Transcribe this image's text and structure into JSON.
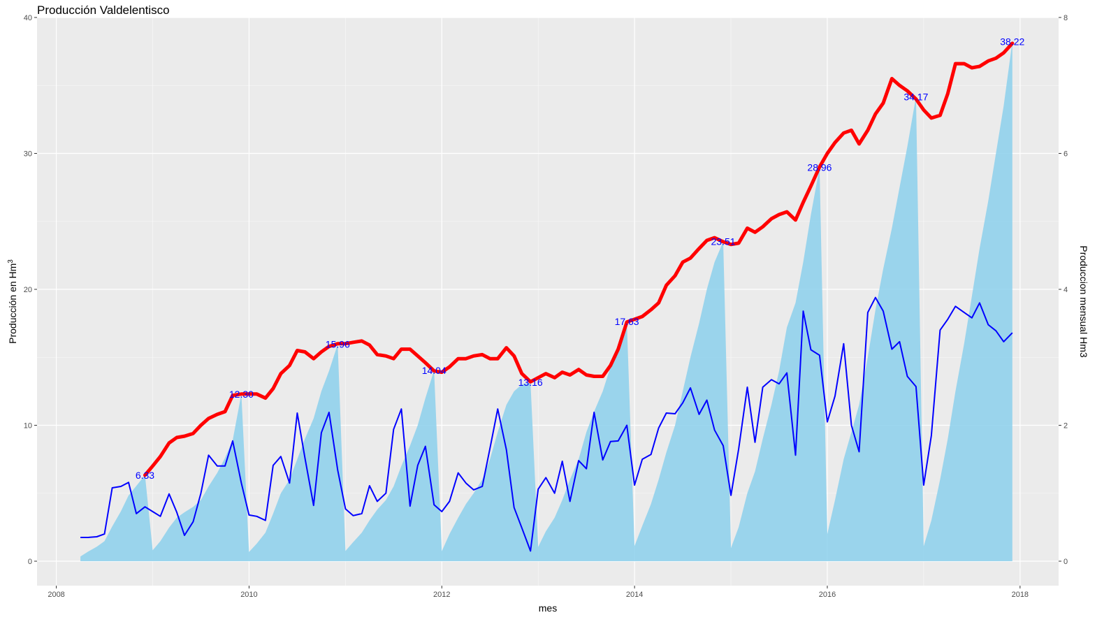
{
  "chart_data": {
    "type": "area",
    "title": "Producción Valdelentisco",
    "xlabel": "mes",
    "ylabel": "Producción en Hm3",
    "ylabel_right": "Produccion mensual Hm3",
    "xlim": [
      2007.8,
      2018.4
    ],
    "ylim": [
      -1.8,
      40
    ],
    "ylim_right": [
      -0.36,
      8
    ],
    "x_ticks": [
      2008,
      2010,
      2012,
      2014,
      2016,
      2018
    ],
    "x_tick_labels": [
      "2008",
      "2010",
      "2012",
      "2014",
      "2016",
      "2018"
    ],
    "y_ticks": [
      0,
      10,
      20,
      30,
      40
    ],
    "y_tick_labels": [
      "0",
      "10",
      "20",
      "30",
      "40"
    ],
    "y_ticks_right": [
      0,
      2,
      4,
      6,
      8
    ],
    "y_tick_labels_right": [
      "0",
      "2",
      "4",
      "6",
      "8"
    ],
    "grid": true,
    "background": "#ebebeb",
    "colors": {
      "cumulative_area": "#87ceeb",
      "monthly_line": "#0000ff",
      "rolling_line": "#ff0000",
      "labels": "#0000ff"
    },
    "series": [
      {
        "type": "area",
        "axis": "left",
        "x": [
          2008.25,
          2008.33,
          2008.42,
          2008.5,
          2008.58,
          2008.67,
          2008.75,
          2008.83,
          2008.92,
          2009.0,
          2009.08,
          2009.17,
          2009.25,
          2009.33,
          2009.42,
          2009.5,
          2009.58,
          2009.67,
          2009.75,
          2009.83,
          2009.92,
          2010.0,
          2010.08,
          2010.17,
          2010.25,
          2010.33,
          2010.42,
          2010.5,
          2010.58,
          2010.67,
          2010.75,
          2010.83,
          2010.92,
          2011.0,
          2011.08,
          2011.17,
          2011.25,
          2011.33,
          2011.42,
          2011.5,
          2011.58,
          2011.67,
          2011.75,
          2011.83,
          2011.92,
          2012.0,
          2012.08,
          2012.17,
          2012.25,
          2012.33,
          2012.42,
          2012.5,
          2012.58,
          2012.67,
          2012.75,
          2012.83,
          2012.92,
          2013.0,
          2013.08,
          2013.17,
          2013.25,
          2013.33,
          2013.42,
          2013.5,
          2013.58,
          2013.67,
          2013.75,
          2013.83,
          2013.92,
          2014.0,
          2014.08,
          2014.17,
          2014.25,
          2014.33,
          2014.42,
          2014.5,
          2014.58,
          2014.67,
          2014.75,
          2014.83,
          2014.92,
          2015.0,
          2015.08,
          2015.17,
          2015.25,
          2015.33,
          2015.42,
          2015.5,
          2015.58,
          2015.67,
          2015.75,
          2015.83,
          2015.92,
          2016.0,
          2016.08,
          2016.17,
          2016.25,
          2016.33,
          2016.42,
          2016.5,
          2016.58,
          2016.67,
          2016.75,
          2016.83,
          2016.92,
          2017.0,
          2017.08,
          2017.17,
          2017.25,
          2017.33,
          2017.42,
          2017.5,
          2017.58,
          2017.67,
          2017.75,
          2017.83,
          2017.92
        ],
        "y": [
          0.35,
          0.71,
          1.07,
          1.47,
          2.56,
          3.67,
          4.84,
          5.54,
          6.33,
          0.8,
          1.47,
          2.47,
          3.2,
          3.6,
          4.0,
          4.5,
          5.5,
          6.5,
          7.6,
          8.9,
          12.3,
          0.68,
          1.3,
          2.1,
          3.5,
          5.0,
          6.0,
          7.5,
          9.0,
          10.5,
          12.5,
          14.0,
          15.96,
          0.75,
          1.4,
          2.1,
          3.0,
          3.8,
          4.5,
          5.5,
          7.0,
          8.5,
          10.0,
          12.0,
          14.04,
          0.74,
          2.0,
          3.2,
          4.2,
          5.0,
          6.0,
          7.5,
          9.5,
          11.5,
          12.5,
          13.0,
          13.16,
          1.05,
          2.2,
          3.2,
          4.5,
          6.0,
          7.5,
          9.5,
          11.0,
          12.5,
          14.3,
          16.0,
          17.63,
          1.12,
          2.6,
          4.2,
          6.0,
          8.0,
          10.0,
          12.5,
          15.0,
          17.5,
          20.0,
          22.0,
          23.51,
          0.97,
          2.5,
          5.0,
          6.6,
          9.0,
          11.5,
          14.0,
          17.2,
          19.0,
          22.0,
          25.5,
          28.96,
          2.0,
          4.5,
          7.5,
          9.5,
          11.5,
          15.0,
          18.5,
          21.5,
          24.5,
          27.5,
          30.5,
          34.17,
          1.1,
          3.0,
          6.0,
          9.0,
          12.5,
          16.0,
          19.5,
          23.0,
          26.5,
          30.0,
          33.5,
          38.22
        ]
      },
      {
        "type": "line",
        "axis": "right",
        "x": [
          2008.25,
          2008.33,
          2008.42,
          2008.5,
          2008.58,
          2008.67,
          2008.75,
          2008.83,
          2008.92,
          2009.0,
          2009.08,
          2009.17,
          2009.25,
          2009.33,
          2009.42,
          2009.5,
          2009.58,
          2009.67,
          2009.75,
          2009.83,
          2009.92,
          2010.0,
          2010.08,
          2010.17,
          2010.25,
          2010.33,
          2010.42,
          2010.5,
          2010.58,
          2010.67,
          2010.75,
          2010.83,
          2010.92,
          2011.0,
          2011.08,
          2011.17,
          2011.25,
          2011.33,
          2011.42,
          2011.5,
          2011.58,
          2011.67,
          2011.75,
          2011.83,
          2011.92,
          2012.0,
          2012.08,
          2012.17,
          2012.25,
          2012.33,
          2012.42,
          2012.5,
          2012.58,
          2012.67,
          2012.75,
          2012.83,
          2012.92,
          2013.0,
          2013.08,
          2013.17,
          2013.25,
          2013.33,
          2013.42,
          2013.5,
          2013.58,
          2013.67,
          2013.75,
          2013.83,
          2013.92,
          2014.0,
          2014.08,
          2014.17,
          2014.25,
          2014.33,
          2014.42,
          2014.5,
          2014.58,
          2014.67,
          2014.75,
          2014.83,
          2014.92,
          2015.0,
          2015.08,
          2015.17,
          2015.25,
          2015.33,
          2015.42,
          2015.5,
          2015.58,
          2015.67,
          2015.75,
          2015.83,
          2015.92,
          2016.0,
          2016.08,
          2016.17,
          2016.25,
          2016.33,
          2016.42,
          2016.5,
          2016.58,
          2016.67,
          2016.75,
          2016.83,
          2016.92,
          2017.0,
          2017.08,
          2017.17,
          2017.25,
          2017.33,
          2017.42,
          2017.5,
          2017.58,
          2017.67,
          2017.75,
          2017.83,
          2017.92
        ],
        "y": [
          0.35,
          0.35,
          0.36,
          0.4,
          1.08,
          1.1,
          1.16,
          0.7,
          0.8,
          0.73,
          0.66,
          0.99,
          0.72,
          0.38,
          0.58,
          1.0,
          1.56,
          1.4,
          1.4,
          1.77,
          1.15,
          0.68,
          0.66,
          0.6,
          1.41,
          1.54,
          1.15,
          2.18,
          1.52,
          0.82,
          1.89,
          2.19,
          1.34,
          0.77,
          0.67,
          0.7,
          1.11,
          0.88,
          1.0,
          1.94,
          2.24,
          0.81,
          1.41,
          1.69,
          0.83,
          0.73,
          0.88,
          1.3,
          1.15,
          1.05,
          1.1,
          1.66,
          2.24,
          1.64,
          0.79,
          0.49,
          0.15,
          1.06,
          1.23,
          1.0,
          1.47,
          0.88,
          1.48,
          1.36,
          2.19,
          1.49,
          1.76,
          1.77,
          2.0,
          1.12,
          1.5,
          1.57,
          1.96,
          2.18,
          2.17,
          2.33,
          2.55,
          2.16,
          2.37,
          1.93,
          1.7,
          0.97,
          1.65,
          2.56,
          1.75,
          2.56,
          2.67,
          2.61,
          2.77,
          1.56,
          3.68,
          3.11,
          3.03,
          2.05,
          2.43,
          3.2,
          2.0,
          1.61,
          3.66,
          3.88,
          3.68,
          3.12,
          3.23,
          2.72,
          2.57,
          1.12,
          1.85,
          3.4,
          3.56,
          3.75,
          3.66,
          3.58,
          3.8,
          3.48,
          3.39,
          3.23,
          3.36
        ]
      },
      {
        "type": "line",
        "axis": "left",
        "x": [
          2008.92,
          2009.0,
          2009.08,
          2009.17,
          2009.25,
          2009.33,
          2009.42,
          2009.5,
          2009.58,
          2009.67,
          2009.75,
          2009.83,
          2009.92,
          2010.0,
          2010.08,
          2010.17,
          2010.25,
          2010.33,
          2010.42,
          2010.5,
          2010.58,
          2010.67,
          2010.75,
          2010.83,
          2010.92,
          2011.0,
          2011.08,
          2011.17,
          2011.25,
          2011.33,
          2011.42,
          2011.5,
          2011.58,
          2011.67,
          2011.75,
          2011.83,
          2011.92,
          2012.0,
          2012.08,
          2012.17,
          2012.25,
          2012.33,
          2012.42,
          2012.5,
          2012.58,
          2012.67,
          2012.75,
          2012.83,
          2012.92,
          2013.0,
          2013.08,
          2013.17,
          2013.25,
          2013.33,
          2013.42,
          2013.5,
          2013.58,
          2013.67,
          2013.75,
          2013.83,
          2013.92,
          2014.0,
          2014.08,
          2014.17,
          2014.25,
          2014.33,
          2014.42,
          2014.5,
          2014.58,
          2014.67,
          2014.75,
          2014.83,
          2014.92,
          2015.0,
          2015.08,
          2015.17,
          2015.25,
          2015.33,
          2015.42,
          2015.5,
          2015.58,
          2015.67,
          2015.75,
          2015.83,
          2015.92,
          2016.0,
          2016.08,
          2016.17,
          2016.25,
          2016.33,
          2016.42,
          2016.5,
          2016.58,
          2016.67,
          2016.75,
          2016.83,
          2016.92,
          2017.0,
          2017.08,
          2017.17,
          2017.25,
          2017.33,
          2017.42,
          2017.5,
          2017.58,
          2017.67,
          2017.75,
          2017.83,
          2017.92
        ],
        "y": [
          6.33,
          7.0,
          7.7,
          8.7,
          9.1,
          9.2,
          9.4,
          10.0,
          10.5,
          10.8,
          11.0,
          12.2,
          12.3,
          12.3,
          12.3,
          12.0,
          12.7,
          13.8,
          14.4,
          15.5,
          15.4,
          14.9,
          15.4,
          15.8,
          16.0,
          16.0,
          16.1,
          16.2,
          15.9,
          15.2,
          15.1,
          14.9,
          15.6,
          15.6,
          15.1,
          14.6,
          14.0,
          13.9,
          14.3,
          14.9,
          14.9,
          15.1,
          15.2,
          14.9,
          14.9,
          15.7,
          15.1,
          13.8,
          13.2,
          13.5,
          13.8,
          13.5,
          13.9,
          13.7,
          14.1,
          13.7,
          13.6,
          13.6,
          14.4,
          15.6,
          17.6,
          17.8,
          18.0,
          18.5,
          19.0,
          20.3,
          21.0,
          22.0,
          22.3,
          23.0,
          23.6,
          23.8,
          23.5,
          23.3,
          23.4,
          24.5,
          24.2,
          24.6,
          25.2,
          25.5,
          25.7,
          25.1,
          26.4,
          27.6,
          29.0,
          30.0,
          30.8,
          31.5,
          31.7,
          30.7,
          31.7,
          32.9,
          33.7,
          35.5,
          35.0,
          34.6,
          34.0,
          33.2,
          32.6,
          32.8,
          34.4,
          36.6,
          36.6,
          36.3,
          36.4,
          36.8,
          37.0,
          37.4,
          38.1
        ]
      }
    ],
    "annotations": [
      {
        "x": 2008.92,
        "y": 6.33,
        "text": "6.33"
      },
      {
        "x": 2009.92,
        "y": 12.3,
        "text": "12.30"
      },
      {
        "x": 2010.92,
        "y": 15.96,
        "text": "15.96"
      },
      {
        "x": 2011.92,
        "y": 14.04,
        "text": "14.04"
      },
      {
        "x": 2012.92,
        "y": 13.16,
        "text": "13.16"
      },
      {
        "x": 2013.92,
        "y": 17.63,
        "text": "17.63"
      },
      {
        "x": 2014.92,
        "y": 23.51,
        "text": "23.51"
      },
      {
        "x": 2015.92,
        "y": 28.96,
        "text": "28.96"
      },
      {
        "x": 2016.92,
        "y": 34.17,
        "text": "34.17"
      },
      {
        "x": 2017.92,
        "y": 38.22,
        "text": "38.22"
      }
    ]
  }
}
